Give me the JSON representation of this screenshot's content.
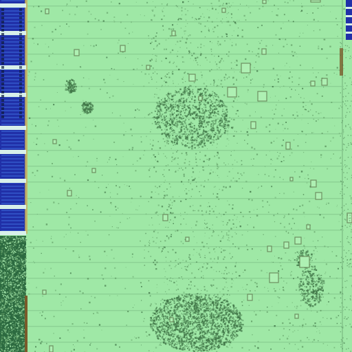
{
  "image": {
    "subject": "micrograph-chip-surface",
    "colors": {
      "field": "#9fe8a6",
      "field_light": "#aef0b3",
      "line": "#86c98e",
      "speckle": "#5f9a63",
      "speckle_dark": "#3f7446",
      "strip_blue": "#2030a8",
      "strip_blue_light": "#3c6ad8",
      "strip_band": "#d8f0ea",
      "strip_dark": "#0e1a3c",
      "strip_gold": "#c8b060",
      "edge_rust": "#7a5a2a",
      "pad_outline": "#6d8f60"
    }
  }
}
